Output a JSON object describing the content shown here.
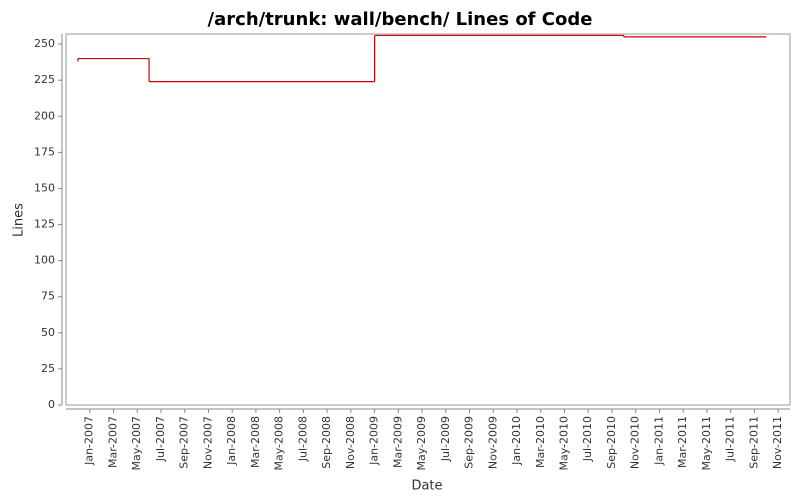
{
  "chart_data": {
    "type": "step",
    "title": "/arch/trunk: wall/bench/ Lines of Code",
    "x_label": "Date",
    "y_label": "Lines",
    "x": [
      "2006-12",
      "2006-12",
      "2007-06",
      "2009-01",
      "2010-10",
      "2011-10"
    ],
    "values": [
      238,
      240,
      224,
      256,
      255,
      255
    ],
    "color": "#cc0000",
    "xlim": [
      "2006-11",
      "2011-12"
    ],
    "xticks": [
      {
        "value": "2007-01",
        "label": "Jan-2007"
      },
      {
        "value": "2007-03",
        "label": "Mar-2007"
      },
      {
        "value": "2007-05",
        "label": "May-2007"
      },
      {
        "value": "2007-07",
        "label": "Jul-2007"
      },
      {
        "value": "2007-09",
        "label": "Sep-2007"
      },
      {
        "value": "2007-11",
        "label": "Nov-2007"
      },
      {
        "value": "2008-01",
        "label": "Jan-2008"
      },
      {
        "value": "2008-03",
        "label": "Mar-2008"
      },
      {
        "value": "2008-05",
        "label": "May-2008"
      },
      {
        "value": "2008-07",
        "label": "Jul-2008"
      },
      {
        "value": "2008-09",
        "label": "Sep-2008"
      },
      {
        "value": "2008-11",
        "label": "Nov-2008"
      },
      {
        "value": "2009-01",
        "label": "Jan-2009"
      },
      {
        "value": "2009-03",
        "label": "Mar-2009"
      },
      {
        "value": "2009-05",
        "label": "May-2009"
      },
      {
        "value": "2009-07",
        "label": "Jul-2009"
      },
      {
        "value": "2009-09",
        "label": "Sep-2009"
      },
      {
        "value": "2009-11",
        "label": "Nov-2009"
      },
      {
        "value": "2010-01",
        "label": "Jan-2010"
      },
      {
        "value": "2010-03",
        "label": "Mar-2010"
      },
      {
        "value": "2010-05",
        "label": "May-2010"
      },
      {
        "value": "2010-07",
        "label": "Jul-2010"
      },
      {
        "value": "2010-09",
        "label": "Sep-2010"
      },
      {
        "value": "2010-11",
        "label": "Nov-2010"
      },
      {
        "value": "2011-01",
        "label": "Jan-2011"
      },
      {
        "value": "2011-03",
        "label": "Mar-2011"
      },
      {
        "value": "2011-05",
        "label": "May-2011"
      },
      {
        "value": "2011-07",
        "label": "Jul-2011"
      },
      {
        "value": "2011-09",
        "label": "Sep-2011"
      },
      {
        "value": "2011-11",
        "label": "Nov-2011"
      }
    ],
    "ylim": [
      0,
      257
    ],
    "yticks": [
      0,
      25,
      50,
      75,
      100,
      125,
      150,
      175,
      200,
      225,
      250
    ],
    "grid": false
  }
}
